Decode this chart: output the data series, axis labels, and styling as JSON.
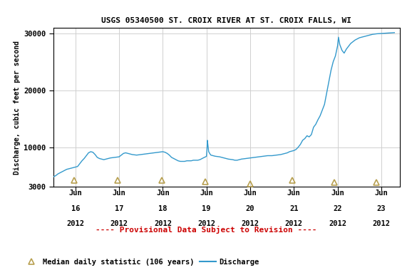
{
  "title": "USGS 05340500 ST. CROIX RIVER AT ST. CROIX FALLS, WI",
  "ylabel": "Discharge, cubic feet per second",
  "provisional_text": "---- Provisional Data Subject to Revision ----",
  "legend_triangle": "Median daily statistic (106 years)",
  "legend_line": "Discharge",
  "yticks": [
    3000,
    10000,
    20000,
    30000
  ],
  "plot_bg_color": "#ffffff",
  "fig_bg_color": "#ffffff",
  "line_color": "#3399cc",
  "triangle_color": "#b8a050",
  "title_color": "#000000",
  "provisional_color": "#cc0000",
  "grid_color": "#d0d0d0",
  "start_day": 15.5,
  "end_day": 23.42,
  "discharge_data": [
    [
      15.5,
      4800
    ],
    [
      15.55,
      5000
    ],
    [
      15.6,
      5300
    ],
    [
      15.7,
      5700
    ],
    [
      15.8,
      6100
    ],
    [
      15.9,
      6300
    ],
    [
      16.0,
      6500
    ],
    [
      16.05,
      6600
    ],
    [
      16.1,
      7100
    ],
    [
      16.15,
      7600
    ],
    [
      16.2,
      8000
    ],
    [
      16.25,
      8500
    ],
    [
      16.3,
      9000
    ],
    [
      16.35,
      9200
    ],
    [
      16.4,
      9100
    ],
    [
      16.45,
      8700
    ],
    [
      16.5,
      8200
    ],
    [
      16.55,
      8000
    ],
    [
      16.6,
      7900
    ],
    [
      16.65,
      7800
    ],
    [
      16.7,
      7900
    ],
    [
      16.75,
      8000
    ],
    [
      16.8,
      8100
    ],
    [
      16.9,
      8200
    ],
    [
      17.0,
      8300
    ],
    [
      17.05,
      8600
    ],
    [
      17.1,
      8900
    ],
    [
      17.15,
      9000
    ],
    [
      17.2,
      8900
    ],
    [
      17.3,
      8700
    ],
    [
      17.4,
      8600
    ],
    [
      17.5,
      8700
    ],
    [
      17.6,
      8800
    ],
    [
      17.7,
      8900
    ],
    [
      17.8,
      9000
    ],
    [
      17.9,
      9100
    ],
    [
      18.0,
      9200
    ],
    [
      18.05,
      9100
    ],
    [
      18.1,
      8900
    ],
    [
      18.15,
      8600
    ],
    [
      18.2,
      8200
    ],
    [
      18.3,
      7800
    ],
    [
      18.35,
      7600
    ],
    [
      18.4,
      7500
    ],
    [
      18.45,
      7500
    ],
    [
      18.5,
      7500
    ],
    [
      18.55,
      7600
    ],
    [
      18.6,
      7600
    ],
    [
      18.65,
      7600
    ],
    [
      18.7,
      7700
    ],
    [
      18.75,
      7700
    ],
    [
      18.8,
      7700
    ],
    [
      18.85,
      7800
    ],
    [
      18.9,
      8000
    ],
    [
      18.95,
      8200
    ],
    [
      18.98,
      8300
    ],
    [
      19.0,
      8400
    ],
    [
      19.01,
      9500
    ],
    [
      19.02,
      11200
    ],
    [
      19.03,
      10500
    ],
    [
      19.05,
      9200
    ],
    [
      19.08,
      8800
    ],
    [
      19.1,
      8600
    ],
    [
      19.15,
      8500
    ],
    [
      19.2,
      8400
    ],
    [
      19.3,
      8300
    ],
    [
      19.4,
      8100
    ],
    [
      19.45,
      8000
    ],
    [
      19.5,
      7900
    ],
    [
      19.6,
      7800
    ],
    [
      19.65,
      7700
    ],
    [
      19.7,
      7700
    ],
    [
      19.75,
      7800
    ],
    [
      19.8,
      7900
    ],
    [
      19.9,
      8000
    ],
    [
      20.0,
      8100
    ],
    [
      20.1,
      8200
    ],
    [
      20.2,
      8300
    ],
    [
      20.3,
      8400
    ],
    [
      20.4,
      8500
    ],
    [
      20.5,
      8500
    ],
    [
      20.6,
      8600
    ],
    [
      20.7,
      8700
    ],
    [
      20.75,
      8800
    ],
    [
      20.8,
      8900
    ],
    [
      20.85,
      9000
    ],
    [
      20.9,
      9200
    ],
    [
      21.0,
      9400
    ],
    [
      21.05,
      9600
    ],
    [
      21.1,
      10000
    ],
    [
      21.15,
      10500
    ],
    [
      21.2,
      11200
    ],
    [
      21.25,
      11500
    ],
    [
      21.3,
      12000
    ],
    [
      21.35,
      11800
    ],
    [
      21.4,
      12200
    ],
    [
      21.45,
      13500
    ],
    [
      21.5,
      14000
    ],
    [
      21.55,
      14800
    ],
    [
      21.6,
      15500
    ],
    [
      21.65,
      16500
    ],
    [
      21.7,
      17500
    ],
    [
      21.75,
      19500
    ],
    [
      21.8,
      21500
    ],
    [
      21.85,
      23500
    ],
    [
      21.9,
      25000
    ],
    [
      21.95,
      26000
    ],
    [
      22.0,
      27800
    ],
    [
      22.02,
      29300
    ],
    [
      22.05,
      28000
    ],
    [
      22.1,
      27000
    ],
    [
      22.15,
      26500
    ],
    [
      22.2,
      27200
    ],
    [
      22.3,
      28200
    ],
    [
      22.4,
      28800
    ],
    [
      22.5,
      29200
    ],
    [
      22.6,
      29400
    ],
    [
      22.7,
      29600
    ],
    [
      22.8,
      29800
    ],
    [
      22.9,
      29900
    ],
    [
      23.0,
      29950
    ],
    [
      23.1,
      30000
    ],
    [
      23.2,
      30050
    ],
    [
      23.3,
      30100
    ]
  ],
  "median_triangle_x": [
    15.97,
    16.97,
    17.97,
    18.97,
    20.0,
    20.97,
    21.92,
    22.88
  ],
  "median_triangle_y": [
    4200,
    4200,
    4200,
    3900,
    3600,
    4200,
    3800,
    3800
  ]
}
